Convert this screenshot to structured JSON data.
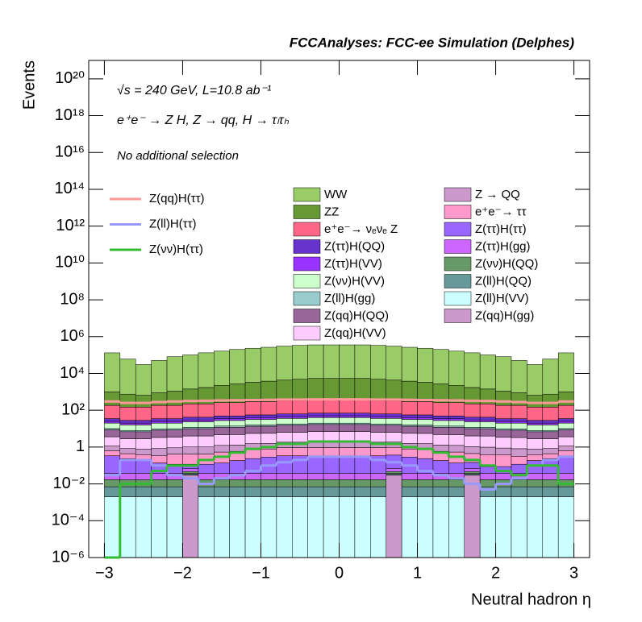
{
  "chart_data": {
    "type": "stacked-histogram",
    "title": "FCCAnalyses: FCC-ee Simulation (Delphes)",
    "annotations": [
      "√s = 240 GeV, L=10.8 ab⁻¹",
      "e⁺e⁻ → Z H, Z → qq, H → τₗτₕ",
      "No additional selection"
    ],
    "x_label": "Neutral hadron η",
    "y_label": "Events",
    "log_y": true,
    "xlim": [
      -3.2,
      3.2
    ],
    "ylim": [
      1e-06,
      1e+21
    ],
    "xticks": [
      {
        "value": -3,
        "label": "−3"
      },
      {
        "value": -2,
        "label": "−2"
      },
      {
        "value": -1,
        "label": "−1"
      },
      0,
      1,
      2,
      3
    ],
    "yticks": [
      {
        "value": 1e-06,
        "label": "10⁻⁶"
      },
      {
        "value": 0.0001,
        "label": "10⁻⁴"
      },
      {
        "value": 0.01,
        "label": "10⁻²"
      },
      1,
      {
        "value": 100,
        "label": "10²"
      },
      {
        "value": 10000.0,
        "label": "10⁴"
      },
      {
        "value": 1000000.0,
        "label": "10⁶"
      },
      {
        "value": 100000000.0,
        "label": "10⁸"
      },
      {
        "value": 10000000000.0,
        "label": "10¹⁰"
      },
      {
        "value": 1000000000000.0,
        "label": "10¹²"
      },
      {
        "value": 100000000000000.0,
        "label": "10¹⁴"
      },
      {
        "value": 1e+16,
        "label": "10¹⁶"
      },
      {
        "value": 1e+18,
        "label": "10¹⁸"
      },
      {
        "value": 1e+20,
        "label": "10²⁰"
      }
    ],
    "bins": [
      -3,
      -2.8,
      -2.6,
      -2.4,
      -2.2,
      -2,
      -1.8,
      -1.6,
      -1.4,
      -1.2,
      -1,
      -0.8,
      -0.6,
      -0.4,
      -0.2,
      0,
      0.2,
      0.4,
      0.6,
      0.8,
      1,
      1.2,
      1.4,
      1.6,
      1.8,
      2,
      2.2,
      2.4,
      2.6,
      2.8,
      3
    ],
    "series": [
      {
        "name": "WW",
        "color": "#99cc66",
        "values": [
          130000,
          60000,
          30000,
          50000,
          80000,
          100000,
          130000,
          160000,
          200000,
          230000,
          260000,
          300000,
          330000,
          350000,
          350000,
          350000,
          350000,
          330000,
          300000,
          260000,
          230000,
          200000,
          160000,
          130000,
          100000,
          80000,
          50000,
          30000,
          60000,
          130000
        ]
      },
      {
        "name": "ZZ",
        "color": "#669933",
        "values": [
          800,
          600,
          500,
          700,
          900,
          1200,
          1500,
          2000,
          2500,
          3000,
          3500,
          4000,
          4500,
          5000,
          5000,
          5000,
          5000,
          4500,
          4000,
          3500,
          3000,
          2500,
          2000,
          1500,
          1200,
          900,
          700,
          500,
          600,
          800
        ]
      },
      {
        "name": "e⁺e⁻→ νₑνₑ Z",
        "color": "#ff6688",
        "values": [
          150,
          120,
          120,
          150,
          150,
          180,
          180,
          210,
          210,
          240,
          240,
          270,
          270,
          300,
          300,
          300,
          300,
          270,
          270,
          240,
          240,
          210,
          210,
          180,
          180,
          150,
          150,
          120,
          120,
          150
        ]
      },
      {
        "name": "Z(ττ)H(QQ)",
        "color": "#6633cc",
        "values": [
          10,
          8,
          8,
          10,
          10,
          12,
          12,
          14,
          14,
          16,
          16,
          18,
          18,
          20,
          20,
          20,
          20,
          18,
          18,
          16,
          16,
          14,
          14,
          12,
          12,
          10,
          10,
          8,
          8,
          10
        ]
      },
      {
        "name": "Z(ττ)H(VV)",
        "color": "#9933ff",
        "values": [
          5,
          4,
          4,
          5,
          5,
          6,
          6,
          7,
          7,
          8,
          8,
          9,
          9,
          10,
          10,
          10,
          10,
          9,
          9,
          8,
          8,
          7,
          7,
          6,
          6,
          5,
          5,
          4,
          4,
          5
        ]
      },
      {
        "name": "Z(νν)H(VV)",
        "color": "#ccffcc",
        "values": [
          10,
          8,
          8,
          10,
          10,
          12,
          12,
          14,
          14,
          16,
          16,
          18,
          18,
          20,
          20,
          20,
          20,
          18,
          18,
          16,
          16,
          14,
          14,
          12,
          12,
          10,
          10,
          8,
          8,
          10
        ]
      },
      {
        "name": "Z(ll)H(gg)",
        "color": "#99cccc",
        "values": [
          1.5,
          1.2,
          1.2,
          1.5,
          1.5,
          1.8,
          1.8,
          2.1,
          2.1,
          2.4,
          2.4,
          2.7,
          2.7,
          3,
          3,
          3,
          3,
          2.7,
          2.7,
          2.4,
          2.4,
          2.1,
          2.1,
          1.8,
          1.8,
          1.5,
          1.5,
          1.2,
          1.2,
          1.5
        ]
      },
      {
        "name": "Z(qq)H(QQ)",
        "color": "#996699",
        "values": [
          5,
          4,
          4,
          5,
          5,
          6,
          6,
          7,
          7,
          8,
          8,
          9,
          9,
          10,
          10,
          10,
          10,
          9,
          9,
          8,
          8,
          7,
          7,
          6,
          6,
          5,
          5,
          4,
          4,
          5
        ]
      },
      {
        "name": "Z(qq)H(VV)",
        "color": "#ffccff",
        "values": [
          2.5,
          2,
          2,
          2.5,
          2.5,
          3,
          3,
          3.5,
          3.5,
          4,
          4,
          4.5,
          4.5,
          5,
          5,
          5,
          5,
          4.5,
          4.5,
          4,
          4,
          3.5,
          3.5,
          3,
          3,
          2.5,
          2.5,
          2,
          2,
          2.5
        ]
      },
      {
        "name": "Z → QQ",
        "color": "#cc99cc",
        "values": [
          0.5,
          0.4,
          0.4,
          0.5,
          0.5,
          0.6,
          0.6,
          0.7,
          0.7,
          0.8,
          0.8,
          0.9,
          0.9,
          1,
          1,
          1,
          1,
          0.9,
          0.9,
          0.8,
          0.8,
          0.7,
          0.7,
          0.6,
          0.6,
          0.5,
          0.5,
          0.4,
          0.4,
          0.5
        ]
      },
      {
        "name": "e⁺e⁻→ ττ",
        "color": "#ff99cc",
        "values": [
          0.3,
          0.2,
          0.2,
          0.2,
          0.3,
          0.3,
          0.3,
          0.4,
          0.4,
          0.5,
          0.5,
          0.6,
          0.6,
          0.6,
          0.6,
          0.6,
          0.6,
          0.6,
          0.6,
          0.5,
          0.5,
          0.4,
          0.4,
          0.3,
          0.3,
          0.3,
          0.2,
          0.2,
          0.2,
          0.3
        ]
      },
      {
        "name": "Z(ττ)H(ττ)",
        "color": "#9966ff",
        "values": [
          0.3,
          0.2,
          0.15,
          0.1,
          0.08,
          0.05,
          0.08,
          0.1,
          0.15,
          0.2,
          0.25,
          0.3,
          0.3,
          0.3,
          0.3,
          0.3,
          0.3,
          0.3,
          0.3,
          0.25,
          0.2,
          0.15,
          0.1,
          0.08,
          0.05,
          0.05,
          0.08,
          0.15,
          0.2,
          0.3
        ]
      },
      {
        "name": "Z(ττ)H(gg)",
        "color": "#cc66ff",
        "values": [
          0.02,
          0.02,
          0.02,
          0.02,
          0.02,
          0.02,
          0.02,
          0.02,
          0.02,
          0.02,
          0.02,
          0.02,
          0.02,
          0.02,
          0.02,
          0.02,
          0.02,
          0.02,
          0.02,
          0.02,
          0.02,
          0.02,
          0.02,
          0.02,
          0.02,
          0.02,
          0.02,
          0.02,
          0.02,
          0.02
        ]
      },
      {
        "name": "Z(νν)H(QQ)",
        "color": "#669966",
        "values": [
          0.01,
          0.01,
          0.01,
          0.01,
          0.01,
          0.01,
          0.01,
          0.01,
          0.01,
          0.01,
          0.01,
          0.01,
          0.01,
          0.01,
          0.01,
          0.01,
          0.01,
          0.01,
          0.01,
          0.01,
          0.01,
          0.01,
          0.01,
          0.01,
          0.01,
          0.01,
          0.01,
          0.01,
          0.01,
          0.01
        ]
      },
      {
        "name": "Z(ll)H(QQ)",
        "color": "#669999",
        "values": [
          0.005,
          0.005,
          0.005,
          0.005,
          0.005,
          0.005,
          0.005,
          0.005,
          0.005,
          0.005,
          0.005,
          0.005,
          0.005,
          0.005,
          0.005,
          0.005,
          0.005,
          0.005,
          0.005,
          0.005,
          0.005,
          0.005,
          0.005,
          0.005,
          0.005,
          0.005,
          0.005,
          0.005,
          0.005,
          0.005
        ]
      },
      {
        "name": "Z(ll)H(VV)",
        "color": "#ccffff",
        "values": [
          0.002,
          0.002,
          0.002,
          0.002,
          0.002,
          0.002,
          0.002,
          0.002,
          0.002,
          0.002,
          0.002,
          0.002,
          0.002,
          0.002,
          0.002,
          0.002,
          0.002,
          0.002,
          0.002,
          0.002,
          0.002,
          0.002,
          0.002,
          0.002,
          0.002,
          0.002,
          0.002,
          0.002,
          0.002,
          0.002
        ]
      },
      {
        "name": "Z(qq)H(gg)",
        "color": "#cc99cc",
        "values": [
          0,
          0,
          0,
          0,
          0,
          0.03,
          0,
          0,
          0,
          0,
          0,
          0,
          0,
          0,
          0,
          0,
          0,
          0,
          0.03,
          0,
          0,
          0,
          0,
          0.03,
          0,
          0,
          0,
          0,
          0,
          0
        ]
      }
    ],
    "line_series": [
      {
        "name": "Z(qq)H(ττ)",
        "color": "#ff9999",
        "values": [
          300,
          250,
          250,
          280,
          300,
          320,
          330,
          340,
          350,
          360,
          370,
          380,
          380,
          390,
          390,
          390,
          390,
          380,
          380,
          370,
          360,
          350,
          340,
          330,
          320,
          300,
          280,
          250,
          250,
          300
        ]
      },
      {
        "name": "Z(ll)H(ττ)",
        "color": "#9999ff",
        "values": [
          0.03,
          0.2,
          0.2,
          0.1,
          0.03,
          0.02,
          0.01,
          0.02,
          0.03,
          0.05,
          0.1,
          0.15,
          0.2,
          0.3,
          0.3,
          0.3,
          0.3,
          0.2,
          0.15,
          0.1,
          0.05,
          0.03,
          0.02,
          0.01,
          0.005,
          0.01,
          0.02,
          0.1,
          0.2,
          0.3
        ]
      },
      {
        "name": "Z(νν)H(ττ)",
        "color": "#33bb33",
        "values": [
          0,
          0.01,
          0.01,
          0.05,
          0.1,
          0.1,
          0.2,
          0.3,
          0.5,
          0.8,
          1,
          1.5,
          1.5,
          2,
          2,
          2,
          2,
          1.5,
          1.5,
          1,
          0.8,
          0.5,
          0.3,
          0.2,
          0.1,
          0.05,
          0.03,
          0.1,
          0.1,
          0.01
        ]
      }
    ]
  }
}
